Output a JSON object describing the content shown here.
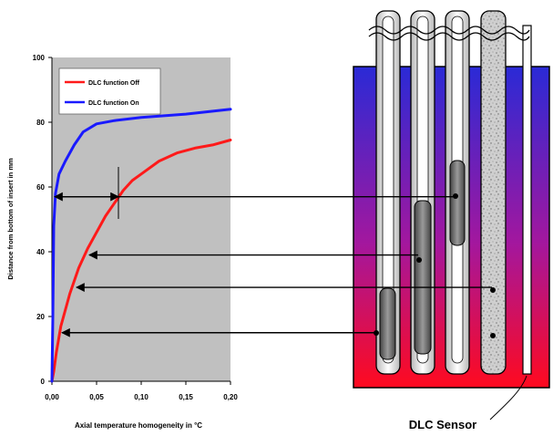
{
  "chart_data": {
    "type": "line",
    "xlabel": "Axial temperature homogeneity in °C",
    "ylabel": "Distance from bottom of insert in mm",
    "xlim": [
      0,
      0.2
    ],
    "ylim": [
      0,
      100
    ],
    "x_ticks": [
      "0,00",
      "0,05",
      "0,10",
      "0,15",
      "0,20"
    ],
    "y_ticks": [
      "0",
      "20",
      "40",
      "60",
      "80",
      "100"
    ],
    "x_tick_values": [
      0,
      0.05,
      0.1,
      0.15,
      0.2
    ],
    "y_tick_values": [
      0,
      20,
      40,
      60,
      80,
      100
    ],
    "grid": false,
    "legend_position": "top-left",
    "series": [
      {
        "name": "DLC function Off",
        "color": "#ff1a1a",
        "points": [
          [
            0,
            0
          ],
          [
            0.002,
            3
          ],
          [
            0.005,
            9
          ],
          [
            0.01,
            17
          ],
          [
            0.02,
            27
          ],
          [
            0.03,
            35
          ],
          [
            0.04,
            41
          ],
          [
            0.05,
            46
          ],
          [
            0.06,
            51
          ],
          [
            0.07,
            55
          ],
          [
            0.08,
            59
          ],
          [
            0.09,
            62
          ],
          [
            0.1,
            64
          ],
          [
            0.12,
            68
          ],
          [
            0.14,
            70.5
          ],
          [
            0.16,
            72
          ],
          [
            0.18,
            73
          ],
          [
            0.2,
            74.5
          ]
        ]
      },
      {
        "name": "DLC function On",
        "color": "#1a1aff",
        "points": [
          [
            0,
            0
          ],
          [
            0.001,
            20
          ],
          [
            0.002,
            48
          ],
          [
            0.004,
            58
          ],
          [
            0.008,
            64
          ],
          [
            0.015,
            68
          ],
          [
            0.025,
            73
          ],
          [
            0.035,
            77
          ],
          [
            0.05,
            79.5
          ],
          [
            0.07,
            80.5
          ],
          [
            0.1,
            81.5
          ],
          [
            0.15,
            82.5
          ],
          [
            0.2,
            84
          ]
        ]
      }
    ],
    "annotation_arrows_mm": [
      57,
      39,
      29,
      15
    ]
  },
  "figure": {
    "sensor_label": "DLC Sensor",
    "colors": {
      "plot_background": "#c0c0c0",
      "block_top": "#2a2ad6",
      "block_mid": "#a3179e",
      "block_bottom": "#ff0a1f"
    }
  }
}
